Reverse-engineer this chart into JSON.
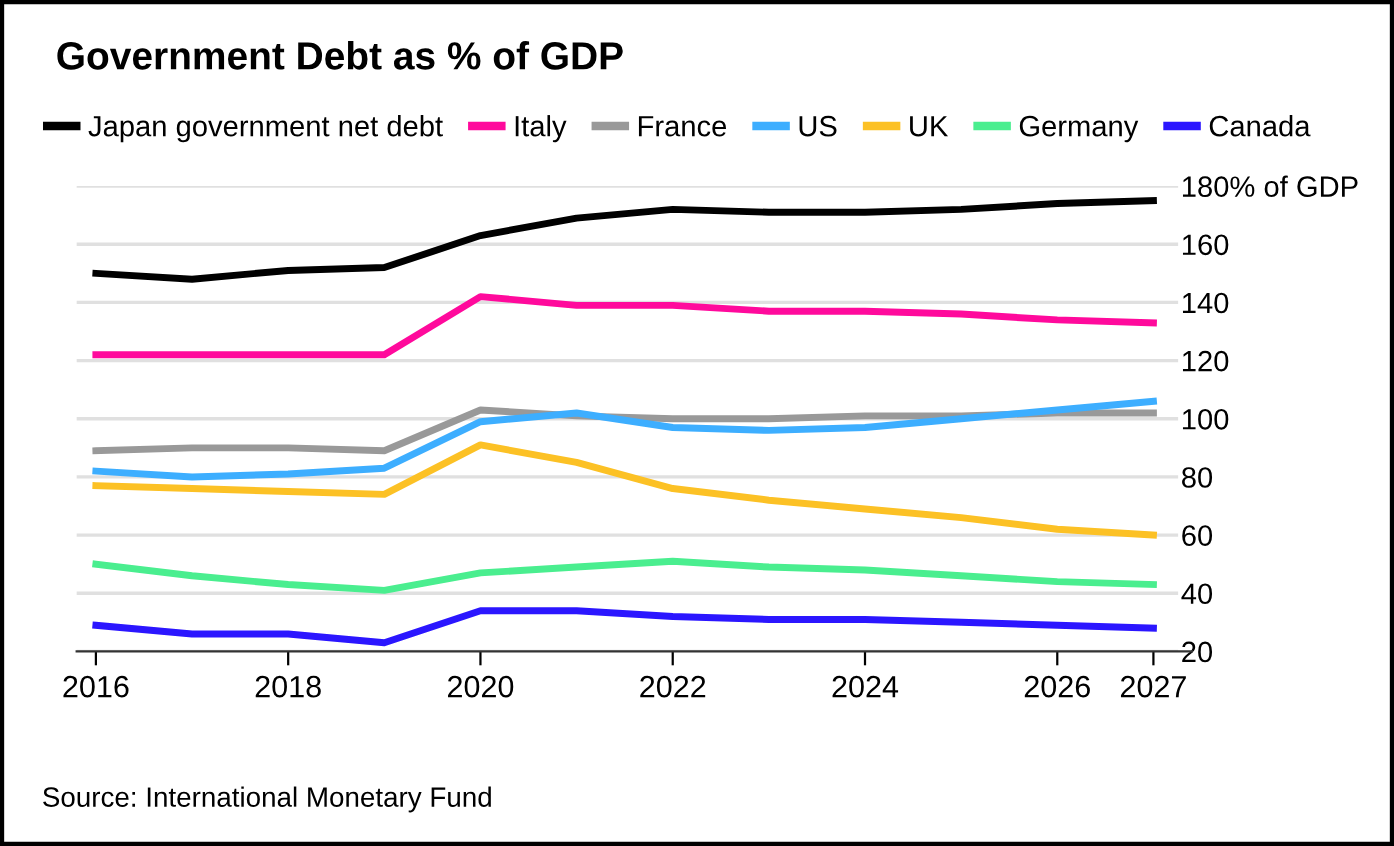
{
  "chart_data": {
    "type": "line",
    "title": "Government Debt as % of GDP",
    "x": [
      2016,
      2017,
      2018,
      2019,
      2020,
      2021,
      2022,
      2023,
      2024,
      2025,
      2026,
      2027
    ],
    "series": [
      {
        "name": "Japan government net debt",
        "color": "#000000",
        "values": [
          150,
          148,
          151,
          152,
          163,
          169,
          172,
          171,
          171,
          172,
          174,
          175
        ]
      },
      {
        "name": "Italy",
        "color": "#ff0a9c",
        "values": [
          122,
          122,
          122,
          122,
          142,
          139,
          139,
          137,
          137,
          136,
          134,
          133
        ]
      },
      {
        "name": "France",
        "color": "#999999",
        "values": [
          89,
          90,
          90,
          89,
          103,
          101,
          100,
          100,
          101,
          101,
          102,
          102
        ]
      },
      {
        "name": "US",
        "color": "#3daeff",
        "values": [
          82,
          80,
          81,
          83,
          99,
          102,
          97,
          96,
          97,
          100,
          103,
          106
        ]
      },
      {
        "name": "UK",
        "color": "#fcc125",
        "values": [
          77,
          76,
          75,
          74,
          91,
          85,
          76,
          72,
          69,
          66,
          62,
          60
        ]
      },
      {
        "name": "Germany",
        "color": "#4aee8f",
        "values": [
          50,
          46,
          43,
          41,
          47,
          49,
          51,
          49,
          48,
          46,
          44,
          43
        ]
      },
      {
        "name": "Canada",
        "color": "#2b16ff",
        "values": [
          29,
          26,
          26,
          23,
          34,
          34,
          32,
          31,
          31,
          30,
          29,
          28
        ]
      }
    ],
    "xlim": [
      2015.8,
      2027.4
    ],
    "xticks": [
      2016,
      2018,
      2020,
      2022,
      2024,
      2026,
      2027
    ],
    "ylim": [
      20,
      180
    ],
    "yticks": [
      20,
      40,
      60,
      80,
      100,
      120,
      140,
      160,
      {
        "value": 180,
        "label": "180% of GDP"
      }
    ],
    "grid": "y",
    "legend": "top",
    "marker": "none",
    "line_style": "solid",
    "annotations": [
      "Source: International Monetary Fund"
    ]
  }
}
